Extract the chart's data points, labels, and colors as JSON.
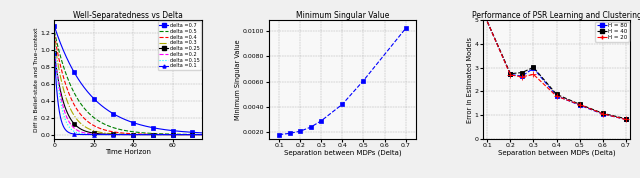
{
  "plot1": {
    "title": "Well-Separatedness vs Delta",
    "xlabel": "Time Horizon",
    "ylabel": "Diff in Belief-state and True-context",
    "xlim": [
      0,
      75
    ],
    "ylim": [
      -0.05,
      1.35
    ],
    "series": [
      {
        "label": "delta =0.7",
        "color": "blue",
        "linestyle": "-",
        "marker": "s",
        "y0": 1.28,
        "decay": 0.055
      },
      {
        "label": "delta =0.5",
        "color": "green",
        "linestyle": "--",
        "marker": null,
        "y0": 1.22,
        "decay": 0.09
      },
      {
        "label": "delta =0.4",
        "color": "red",
        "linestyle": "--",
        "marker": null,
        "y0": 1.18,
        "decay": 0.12
      },
      {
        "label": "delta =0.3",
        "color": "#aaaa00",
        "linestyle": "-.",
        "marker": null,
        "y0": 1.12,
        "decay": 0.16
      },
      {
        "label": "delta =0.25",
        "color": "black",
        "linestyle": "-",
        "marker": "s",
        "y0": 0.96,
        "decay": 0.2
      },
      {
        "label": "delta =0.2",
        "color": "magenta",
        "linestyle": "--",
        "marker": null,
        "y0": 1.05,
        "decay": 0.26
      },
      {
        "label": "delta =0.15",
        "color": "cyan",
        "linestyle": ":",
        "marker": null,
        "y0": 1.15,
        "decay": 0.34
      },
      {
        "label": "delta =0.1",
        "color": "blue",
        "linestyle": "-",
        "marker": "^",
        "y0": 0.96,
        "decay": 0.5
      }
    ]
  },
  "plot2": {
    "title": "Minimum Singular Value",
    "xlabel": "Separation between MDPs (Delta)",
    "ylabel": "Minimum Singular Value",
    "x": [
      0.1,
      0.15,
      0.2,
      0.25,
      0.3,
      0.4,
      0.5,
      0.7
    ],
    "y": [
      0.00183,
      0.00193,
      0.0021,
      0.00242,
      0.00292,
      0.00422,
      0.00608,
      0.01018
    ],
    "xlim": [
      0.05,
      0.75
    ],
    "ylim": [
      0.0015,
      0.0108
    ]
  },
  "plot3": {
    "title": "Performance of PSR Learning and Clustering",
    "xlabel": "Separation between MDPs (Delta)",
    "ylabel": "Error in Estimated Models",
    "xlim": [
      0.08,
      0.72
    ],
    "ylim": [
      0,
      5
    ],
    "series": [
      {
        "label": "H = 80",
        "color": "blue",
        "linestyle": "--",
        "marker": "s",
        "x": [
          0.1,
          0.2,
          0.25,
          0.3,
          0.4,
          0.5,
          0.6,
          0.7
        ],
        "y": [
          4.95,
          2.72,
          2.65,
          2.98,
          1.82,
          1.42,
          1.05,
          0.82
        ]
      },
      {
        "label": "H = 40",
        "color": "black",
        "linestyle": "--",
        "marker": "s",
        "x": [
          0.1,
          0.2,
          0.25,
          0.3,
          0.4,
          0.5,
          0.6,
          0.7
        ],
        "y": [
          4.95,
          2.75,
          2.8,
          3.02,
          1.88,
          1.46,
          1.08,
          0.85
        ]
      },
      {
        "label": "H = 20",
        "color": "red",
        "linestyle": "--",
        "marker": "+",
        "x": [
          0.1,
          0.2,
          0.25,
          0.3,
          0.4,
          0.5,
          0.6,
          0.7
        ],
        "y": [
          4.95,
          2.7,
          2.62,
          2.72,
          1.8,
          1.45,
          1.06,
          0.82
        ]
      }
    ]
  }
}
